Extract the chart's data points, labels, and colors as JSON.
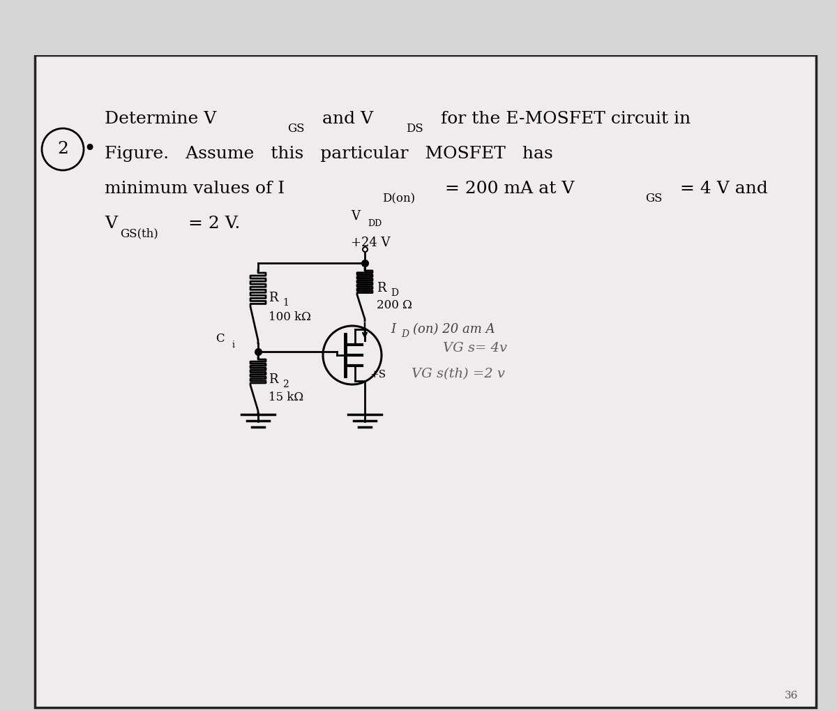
{
  "outer_bg": "#c8c8c8",
  "page_bg": "#e2e2e2",
  "inner_bg": "#f0eeee",
  "text_color": "#111111",
  "problem_number": "2",
  "line1_parts": [
    "Determine V",
    "GS",
    " and V",
    "DS",
    " for the E-MOSFET circuit in"
  ],
  "line2": "Figure.  Assume  this  particular  MOSFET  has",
  "line3_parts": [
    "minimum values of I",
    "D(on)",
    " = 200 mA at V",
    "GS",
    " = 4 V and"
  ],
  "line4_parts": [
    "V",
    "GS(th)",
    " = 2 V."
  ],
  "vdd_text1": "V",
  "vdd_text2": "DD",
  "vdd_text3": "+24 V",
  "rd_text1": "R",
  "rd_text2": "D",
  "rd_text3": "200 Ω",
  "r1_text1": "R",
  "r1_text2": "1",
  "r1_text3": "100 kΩ",
  "r2_text1": "R",
  "r2_text2": "2",
  "r2_text3": "15 kΩ",
  "ci_text": "C",
  "ci_sub": "i",
  "id_note": "I",
  "id_note_sub": "D",
  "id_note_rest": "(on) 20 am A",
  "vgs_note": "VG s= 4v",
  "vgs_th_note": "VG s(th) =2 v",
  "plus_s": "+S",
  "page_number": "36",
  "main_font_size": 18,
  "sub_font_size": 12
}
